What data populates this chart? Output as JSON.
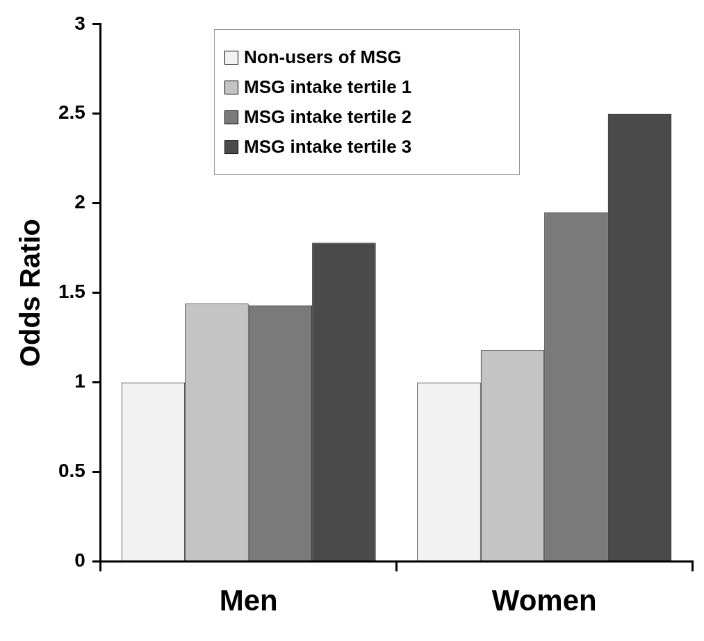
{
  "chart_data": {
    "type": "bar",
    "ylabel": "Odds Ratio",
    "categories": [
      "Men",
      "Women"
    ],
    "series": [
      {
        "name": "Non-users of MSG",
        "color": "#f2f2f2",
        "values": [
          1.0,
          1.0
        ]
      },
      {
        "name": "MSG intake tertile 1",
        "color": "#c4c4c4",
        "values": [
          1.44,
          1.18
        ]
      },
      {
        "name": "MSG intake tertile 2",
        "color": "#7a7a7a",
        "values": [
          1.43,
          1.95
        ]
      },
      {
        "name": "MSG intake tertile 3",
        "color": "#4a4a4a",
        "values": [
          1.78,
          2.5
        ]
      }
    ],
    "ylim": [
      0,
      3
    ],
    "yticks": [
      0,
      0.5,
      1,
      1.5,
      2,
      2.5,
      3
    ],
    "legend": "top"
  }
}
